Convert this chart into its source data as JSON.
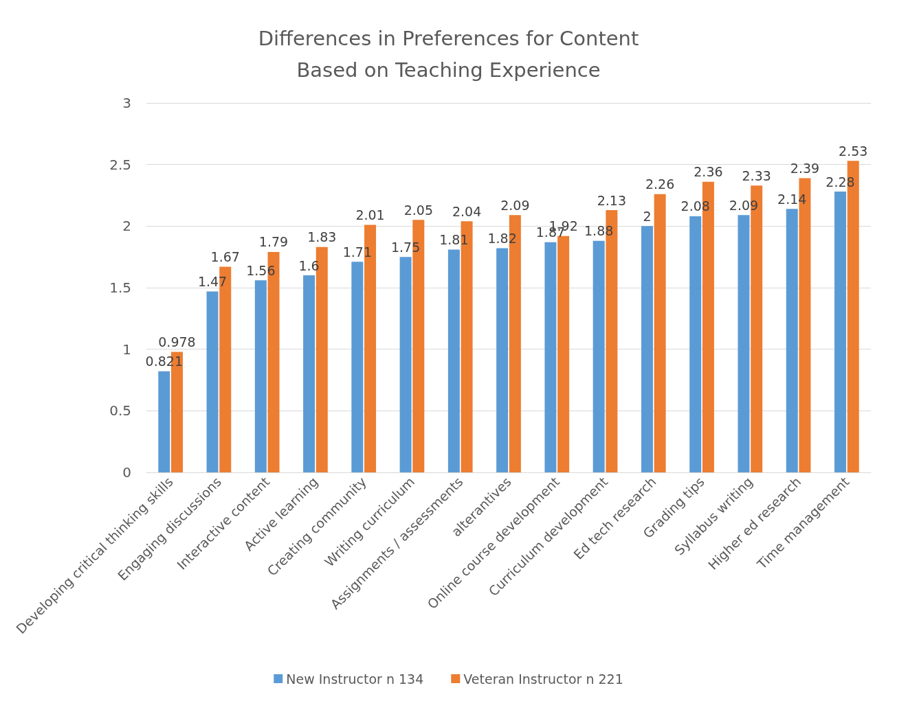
{
  "chart_data": {
    "type": "bar",
    "title": "Differences in Preferences for Content\nBased on Teaching Experience",
    "categories": [
      "Developing critical thinking skills",
      "Engaging discussions",
      "Interactive content",
      "Active learning",
      "Creating community",
      "Writing curriculum",
      "Assignments / assessments",
      "alterantives",
      "Online course development",
      "Curriculum development",
      "Ed tech research",
      "Grading tips",
      "Syllabus writing",
      "Higher ed research",
      "Time management"
    ],
    "series": [
      {
        "name": "New Instructor n 134",
        "color": "#5b9bd5",
        "values": [
          0.821,
          1.47,
          1.56,
          1.6,
          1.71,
          1.75,
          1.81,
          1.82,
          1.87,
          1.88,
          2,
          2.08,
          2.09,
          2.14,
          2.28
        ]
      },
      {
        "name": "Veteran Instructor n 221",
        "color": "#ed7d31",
        "values": [
          0.978,
          1.67,
          1.79,
          1.83,
          2.01,
          2.05,
          2.04,
          2.09,
          1.92,
          2.13,
          2.26,
          2.36,
          2.33,
          2.39,
          2.53
        ]
      }
    ],
    "ylim": [
      0,
      3
    ],
    "yticks": [
      0,
      0.5,
      1,
      1.5,
      2,
      2.5,
      3
    ],
    "grid": "y",
    "legend": "bottom",
    "data_labels": true
  }
}
